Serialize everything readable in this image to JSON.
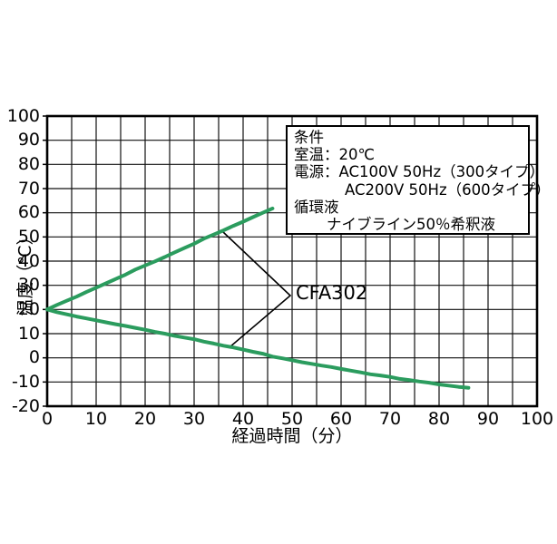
{
  "page": {
    "background": "#ffffff"
  },
  "chart_data": {
    "type": "line",
    "title": "",
    "xlabel": "経過時間（分）",
    "ylabel": "温度（℃）",
    "xlim": [
      0,
      100
    ],
    "ylim": [
      -20,
      100
    ],
    "grid": true,
    "x_grid_step": 5,
    "x_tick_step": 10,
    "y_grid_step": 10,
    "x_ticks": [
      "0",
      "10",
      "20",
      "30",
      "40",
      "50",
      "60",
      "70",
      "80",
      "90",
      "100"
    ],
    "y_ticks": [
      "100",
      "90",
      "80",
      "70",
      "60",
      "50",
      "40",
      "30",
      "20",
      "10",
      "0",
      "-10",
      "-20"
    ],
    "line_color": "#2b9c5e",
    "grid_color": "#111111",
    "frame_color": "#000000",
    "series": [
      {
        "name": "CFA302",
        "id": "heating-curve",
        "points": [
          [
            0,
            20.0
          ],
          [
            2,
            21.9
          ],
          [
            4,
            23.6
          ],
          [
            6,
            25.3
          ],
          [
            8,
            27.2
          ],
          [
            10,
            29.0
          ],
          [
            12,
            30.8
          ],
          [
            14,
            32.6
          ],
          [
            16,
            34.4
          ],
          [
            18,
            36.5
          ],
          [
            20,
            38.2
          ],
          [
            22,
            39.9
          ],
          [
            24,
            41.7
          ],
          [
            26,
            43.6
          ],
          [
            28,
            45.4
          ],
          [
            30,
            47.2
          ],
          [
            32,
            49.3
          ],
          [
            34,
            51.0
          ],
          [
            36,
            52.7
          ],
          [
            38,
            54.6
          ],
          [
            40,
            56.3
          ],
          [
            42,
            58.2
          ],
          [
            44,
            60.0
          ],
          [
            46,
            61.8
          ]
        ]
      },
      {
        "name": "CFA302",
        "id": "cooling-curve",
        "points": [
          [
            0,
            20.0
          ],
          [
            2,
            18.9
          ],
          [
            4,
            18.0
          ],
          [
            6,
            17.1
          ],
          [
            8,
            16.3
          ],
          [
            10,
            15.5
          ],
          [
            12,
            14.7
          ],
          [
            14,
            13.9
          ],
          [
            16,
            13.2
          ],
          [
            18,
            12.4
          ],
          [
            20,
            11.6
          ],
          [
            22,
            10.7
          ],
          [
            24,
            10.0
          ],
          [
            26,
            9.1
          ],
          [
            28,
            8.4
          ],
          [
            30,
            7.7
          ],
          [
            32,
            6.7
          ],
          [
            34,
            5.9
          ],
          [
            36,
            5.0
          ],
          [
            38,
            4.3
          ],
          [
            40,
            3.4
          ],
          [
            42,
            2.5
          ],
          [
            44,
            1.7
          ],
          [
            46,
            0.5
          ],
          [
            48,
            -0.2
          ],
          [
            50,
            -1.0
          ],
          [
            52,
            -1.8
          ],
          [
            54,
            -2.5
          ],
          [
            56,
            -3.2
          ],
          [
            58,
            -3.8
          ],
          [
            60,
            -4.6
          ],
          [
            62,
            -5.3
          ],
          [
            64,
            -6.0
          ],
          [
            66,
            -6.8
          ],
          [
            68,
            -7.3
          ],
          [
            70,
            -7.9
          ],
          [
            72,
            -8.7
          ],
          [
            74,
            -9.2
          ],
          [
            76,
            -9.8
          ],
          [
            78,
            -10.3
          ],
          [
            80,
            -11.0
          ],
          [
            82,
            -11.5
          ],
          [
            84,
            -12.0
          ],
          [
            86,
            -12.4
          ]
        ]
      }
    ],
    "annotation": {
      "label": "CFA302"
    }
  },
  "conditions": {
    "lines": [
      {
        "text": "条件",
        "indent": 0
      },
      {
        "text": "室温：20℃",
        "indent": 0
      },
      {
        "text": "電源：AC100V 50Hz（300タイプ）",
        "indent": 0
      },
      {
        "text": "AC200V 50Hz（600タイプ）",
        "indent": 56
      },
      {
        "text": "循環液",
        "indent": 0
      },
      {
        "text": "ナイブライン50％希釈液",
        "indent": 36
      }
    ]
  }
}
